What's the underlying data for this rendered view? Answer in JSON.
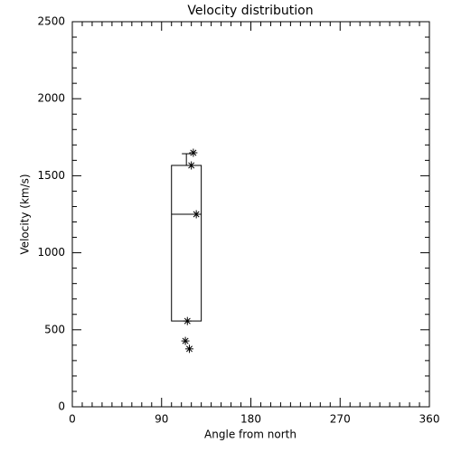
{
  "chart_data": {
    "type": "box",
    "title": "Velocity distribution",
    "x_label": "Angle from north",
    "y_label": "Velocity (km/s)",
    "xlim": [
      0,
      360
    ],
    "xticks": [
      0,
      90,
      180,
      270,
      360
    ],
    "ylim": [
      0,
      2500
    ],
    "yticks": [
      0,
      500,
      1000,
      1500,
      2000,
      2500
    ],
    "color": "#000000",
    "boxes": [
      {
        "position": 115,
        "width": 30,
        "low": 557,
        "q1": 557,
        "median": 1250,
        "q3": 1567,
        "high": 1643
      }
    ],
    "points": {
      "x": [
        122,
        120,
        125,
        116,
        114,
        118
      ],
      "y": [
        1649,
        1567,
        1250,
        557,
        428,
        376
      ]
    }
  }
}
